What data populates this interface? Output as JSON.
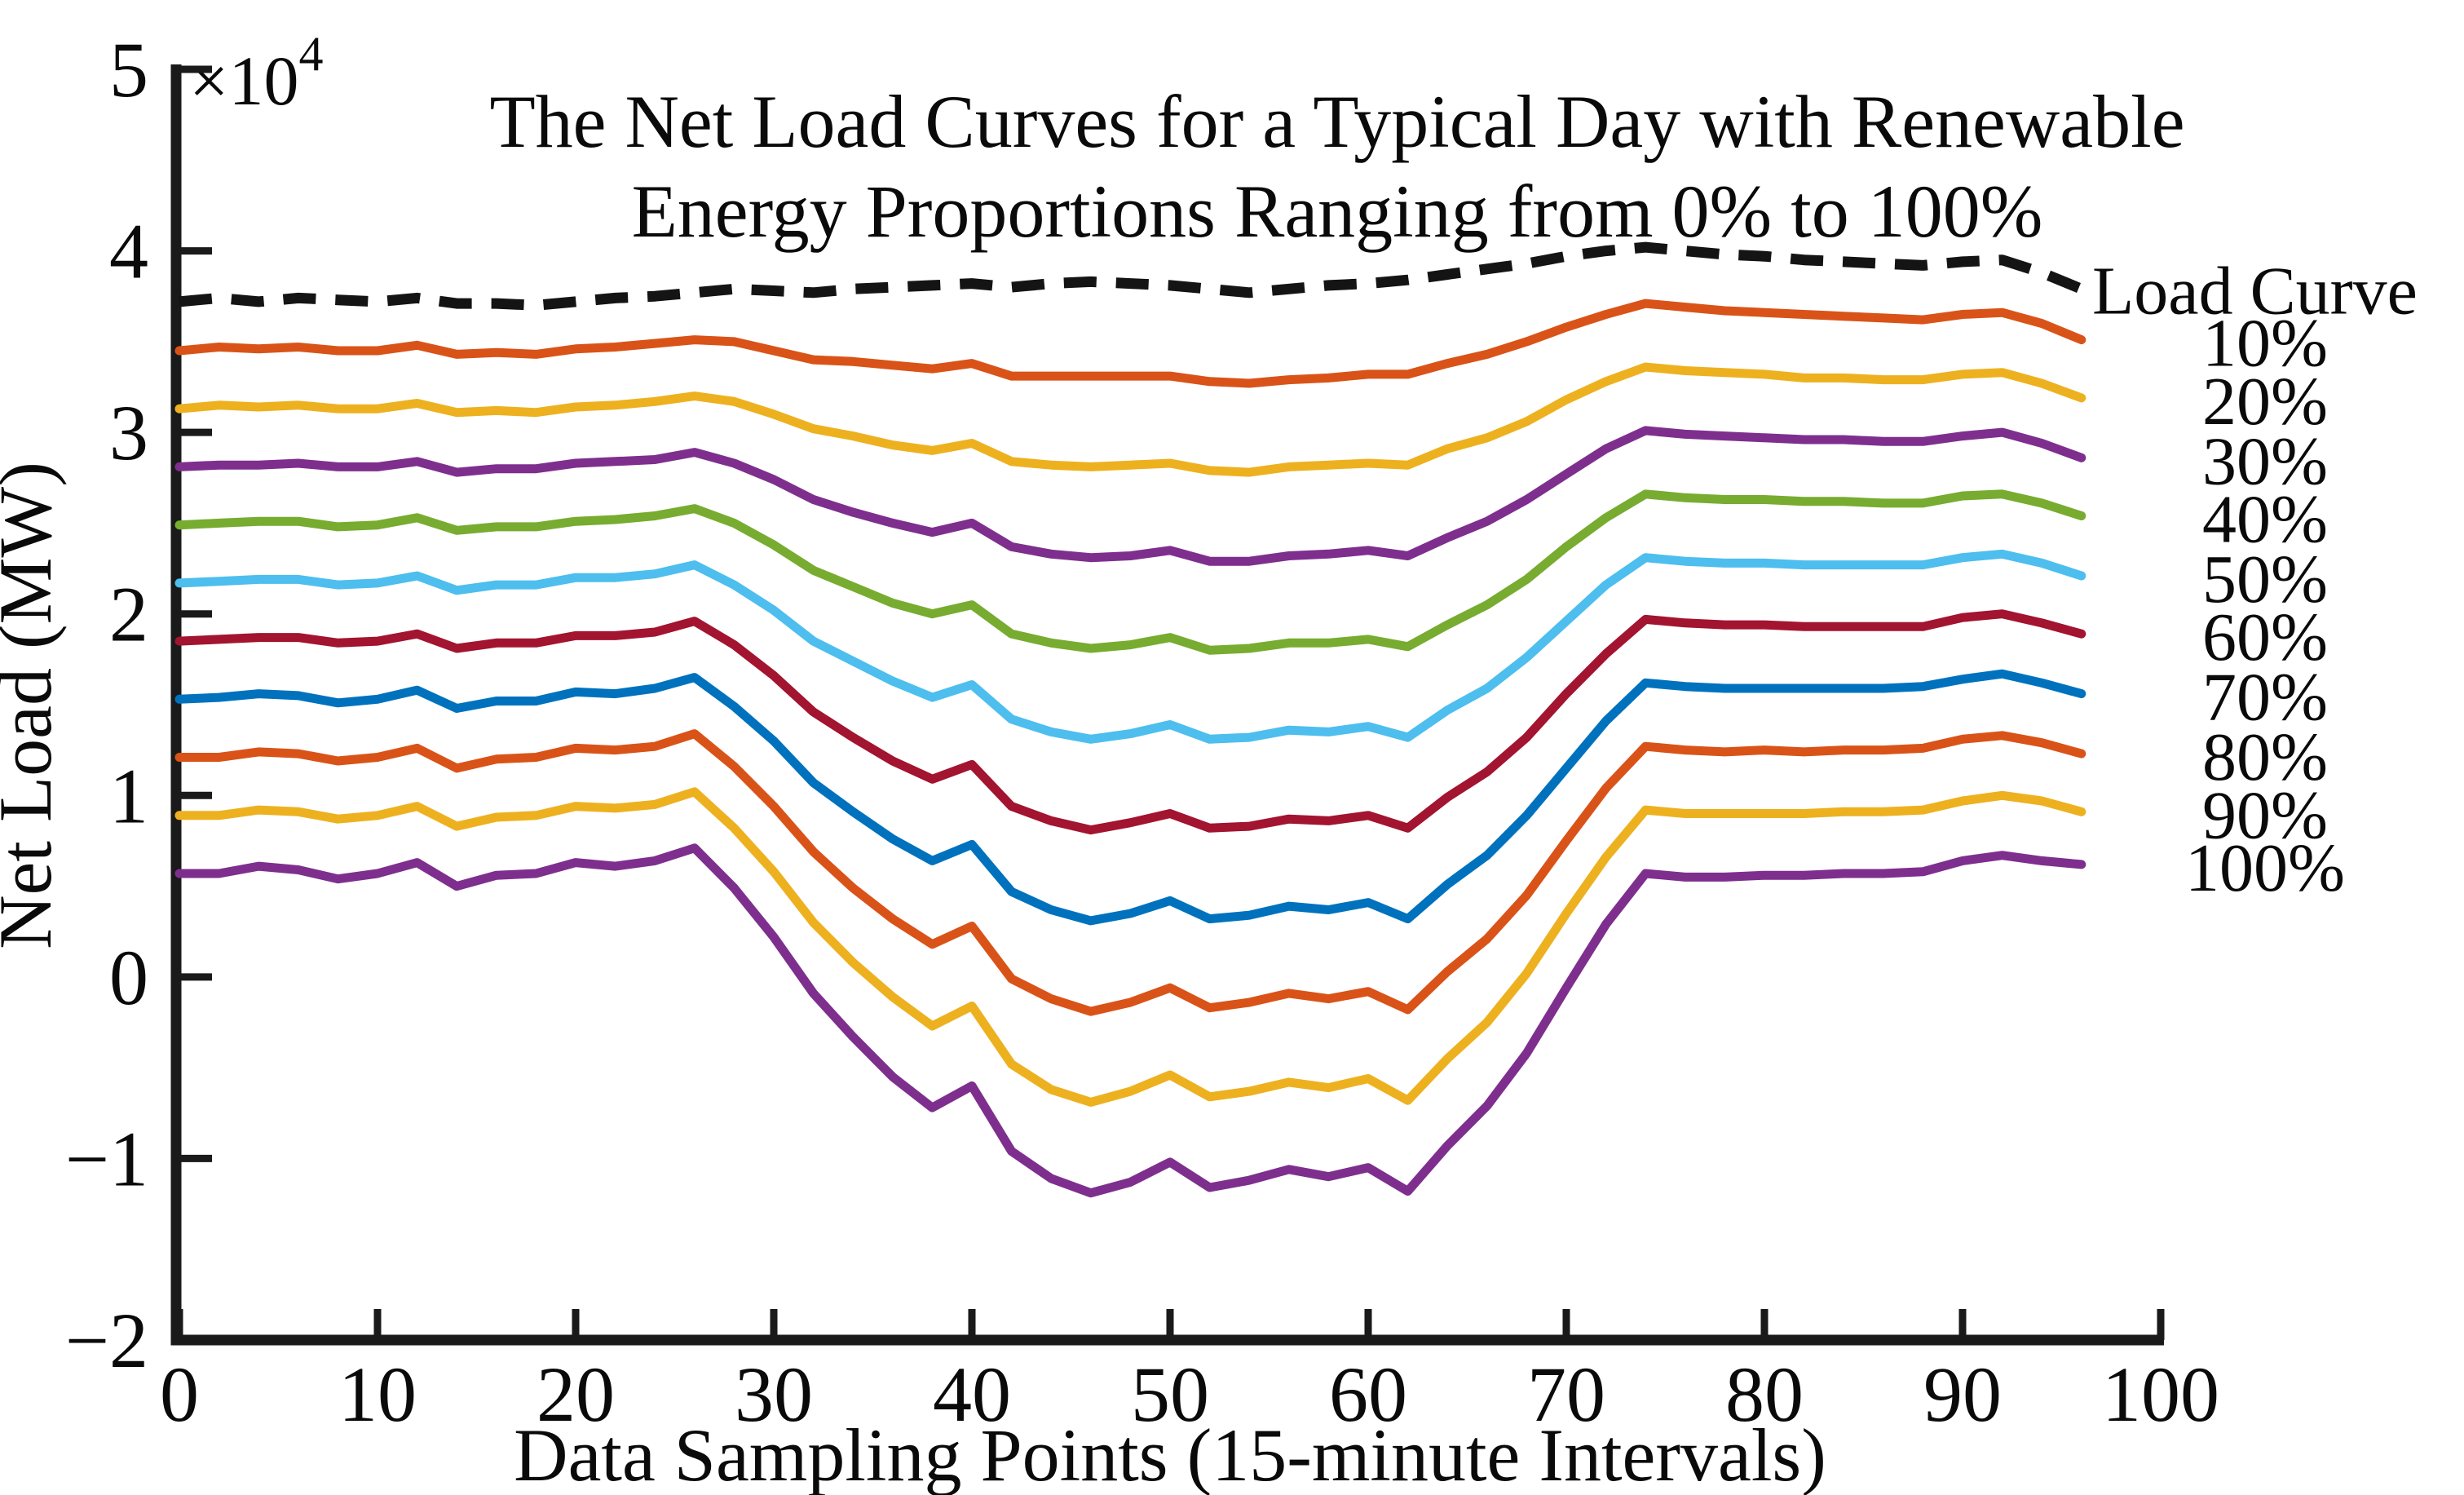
{
  "page": {
    "background_color": "#ffffff"
  },
  "chart_data": {
    "type": "line",
    "title_lines": [
      "The Net Load Curves for a Typical Day with Renewable",
      "Energy Proportions Ranging from 0% to 100%"
    ],
    "xlabel": "Data Sampling Points (15-minute Intervals)",
    "ylabel": "Net Load (MW)",
    "y_axis_multiplier_base": "×10",
    "y_axis_multiplier_exponent": "4",
    "y_unit_scale": 10000,
    "xlim": [
      0,
      100
    ],
    "ylim": [
      -2,
      5
    ],
    "x_ticks": [
      0,
      10,
      20,
      30,
      40,
      50,
      60,
      70,
      80,
      90,
      100
    ],
    "y_ticks": [
      -2,
      -1,
      0,
      1,
      2,
      3,
      4,
      5
    ],
    "grid": false,
    "legend_position": "right-of-plot",
    "axis_color": "#1a1a1a",
    "x": [
      0,
      2,
      4,
      6,
      8,
      10,
      12,
      14,
      16,
      18,
      20,
      22,
      24,
      26,
      28,
      30,
      32,
      34,
      36,
      38,
      40,
      42,
      44,
      46,
      48,
      50,
      52,
      54,
      56,
      58,
      60,
      62,
      64,
      66,
      68,
      70,
      72,
      74,
      76,
      78,
      80,
      82,
      84,
      86,
      88,
      90,
      92,
      94,
      96
    ],
    "series": [
      {
        "name": "Load Curve",
        "color": "#141414",
        "dashed": true,
        "line_width": 13,
        "values": [
          3.72,
          3.74,
          3.72,
          3.74,
          3.73,
          3.72,
          3.74,
          3.71,
          3.71,
          3.7,
          3.72,
          3.74,
          3.75,
          3.77,
          3.79,
          3.78,
          3.77,
          3.79,
          3.8,
          3.81,
          3.82,
          3.8,
          3.82,
          3.83,
          3.82,
          3.81,
          3.79,
          3.77,
          3.79,
          3.81,
          3.82,
          3.84,
          3.87,
          3.9,
          3.93,
          3.97,
          4.0,
          4.02,
          4.0,
          3.98,
          3.97,
          3.95,
          3.94,
          3.93,
          3.92,
          3.94,
          3.95,
          3.88,
          3.79
        ]
      },
      {
        "name": "10%",
        "color": "#D95319",
        "dashed": false,
        "line_width": 11,
        "values": [
          3.45,
          3.47,
          3.46,
          3.47,
          3.45,
          3.45,
          3.48,
          3.43,
          3.44,
          3.43,
          3.46,
          3.47,
          3.49,
          3.51,
          3.5,
          3.45,
          3.4,
          3.39,
          3.37,
          3.35,
          3.38,
          3.31,
          3.31,
          3.31,
          3.31,
          3.31,
          3.28,
          3.27,
          3.29,
          3.3,
          3.32,
          3.32,
          3.38,
          3.43,
          3.5,
          3.58,
          3.65,
          3.71,
          3.69,
          3.67,
          3.66,
          3.65,
          3.64,
          3.63,
          3.62,
          3.65,
          3.66,
          3.6,
          3.51
        ]
      },
      {
        "name": "20%",
        "color": "#EDB120",
        "dashed": false,
        "line_width": 11,
        "values": [
          3.13,
          3.15,
          3.14,
          3.15,
          3.13,
          3.13,
          3.16,
          3.11,
          3.12,
          3.11,
          3.14,
          3.15,
          3.17,
          3.2,
          3.17,
          3.1,
          3.02,
          2.98,
          2.93,
          2.9,
          2.94,
          2.84,
          2.82,
          2.81,
          2.82,
          2.83,
          2.79,
          2.78,
          2.81,
          2.82,
          2.83,
          2.82,
          2.91,
          2.97,
          3.06,
          3.18,
          3.28,
          3.36,
          3.34,
          3.33,
          3.32,
          3.3,
          3.3,
          3.29,
          3.29,
          3.32,
          3.33,
          3.27,
          3.19
        ]
      },
      {
        "name": "30%",
        "color": "#7E2F8E",
        "dashed": false,
        "line_width": 11,
        "values": [
          2.81,
          2.82,
          2.82,
          2.83,
          2.81,
          2.81,
          2.84,
          2.78,
          2.8,
          2.8,
          2.83,
          2.84,
          2.85,
          2.89,
          2.83,
          2.74,
          2.63,
          2.56,
          2.5,
          2.45,
          2.5,
          2.37,
          2.33,
          2.31,
          2.32,
          2.35,
          2.29,
          2.29,
          2.32,
          2.33,
          2.35,
          2.32,
          2.42,
          2.51,
          2.63,
          2.77,
          2.91,
          3.01,
          2.99,
          2.98,
          2.97,
          2.96,
          2.96,
          2.95,
          2.95,
          2.98,
          3.0,
          2.94,
          2.86
        ]
      },
      {
        "name": "40%",
        "color": "#77AC30",
        "dashed": false,
        "line_width": 11,
        "values": [
          2.49,
          2.5,
          2.51,
          2.51,
          2.48,
          2.49,
          2.53,
          2.46,
          2.48,
          2.48,
          2.51,
          2.52,
          2.54,
          2.58,
          2.5,
          2.38,
          2.24,
          2.15,
          2.06,
          2.0,
          2.05,
          1.89,
          1.84,
          1.81,
          1.83,
          1.87,
          1.8,
          1.81,
          1.84,
          1.84,
          1.86,
          1.82,
          1.94,
          2.05,
          2.19,
          2.37,
          2.53,
          2.66,
          2.64,
          2.63,
          2.63,
          2.62,
          2.62,
          2.61,
          2.61,
          2.65,
          2.66,
          2.61,
          2.54
        ]
      },
      {
        "name": "50%",
        "color": "#4DBEEE",
        "dashed": false,
        "line_width": 11,
        "values": [
          2.17,
          2.18,
          2.19,
          2.19,
          2.16,
          2.17,
          2.21,
          2.13,
          2.16,
          2.16,
          2.2,
          2.2,
          2.22,
          2.27,
          2.16,
          2.02,
          1.85,
          1.74,
          1.63,
          1.54,
          1.61,
          1.42,
          1.35,
          1.31,
          1.34,
          1.39,
          1.31,
          1.32,
          1.36,
          1.35,
          1.38,
          1.32,
          1.47,
          1.59,
          1.76,
          1.96,
          2.16,
          2.31,
          2.29,
          2.28,
          2.28,
          2.27,
          2.27,
          2.27,
          2.27,
          2.31,
          2.33,
          2.28,
          2.21
        ]
      },
      {
        "name": "60%",
        "color": "#A2142F",
        "dashed": false,
        "line_width": 11,
        "values": [
          1.85,
          1.86,
          1.87,
          1.87,
          1.84,
          1.85,
          1.89,
          1.81,
          1.84,
          1.84,
          1.88,
          1.88,
          1.9,
          1.96,
          1.83,
          1.66,
          1.46,
          1.32,
          1.19,
          1.09,
          1.17,
          0.94,
          0.86,
          0.81,
          0.85,
          0.9,
          0.82,
          0.83,
          0.87,
          0.86,
          0.89,
          0.82,
          0.99,
          1.13,
          1.32,
          1.56,
          1.78,
          1.97,
          1.95,
          1.94,
          1.94,
          1.93,
          1.93,
          1.93,
          1.93,
          1.98,
          2.0,
          1.95,
          1.89
        ]
      },
      {
        "name": "70%",
        "color": "#0072BD",
        "dashed": false,
        "line_width": 11,
        "values": [
          1.53,
          1.54,
          1.56,
          1.55,
          1.51,
          1.53,
          1.58,
          1.48,
          1.52,
          1.52,
          1.57,
          1.56,
          1.59,
          1.65,
          1.49,
          1.3,
          1.07,
          0.91,
          0.76,
          0.64,
          0.73,
          0.47,
          0.37,
          0.31,
          0.35,
          0.42,
          0.32,
          0.34,
          0.39,
          0.37,
          0.41,
          0.32,
          0.51,
          0.67,
          0.89,
          1.15,
          1.41,
          1.62,
          1.6,
          1.59,
          1.59,
          1.59,
          1.59,
          1.59,
          1.6,
          1.64,
          1.67,
          1.62,
          1.56
        ]
      },
      {
        "name": "80%",
        "color": "#D95319",
        "dashed": false,
        "line_width": 11,
        "values": [
          1.21,
          1.21,
          1.24,
          1.23,
          1.19,
          1.21,
          1.26,
          1.15,
          1.2,
          1.21,
          1.26,
          1.25,
          1.27,
          1.34,
          1.16,
          0.94,
          0.69,
          0.49,
          0.32,
          0.18,
          0.28,
          -0.01,
          -0.12,
          -0.19,
          -0.14,
          -0.06,
          -0.17,
          -0.14,
          -0.09,
          -0.12,
          -0.08,
          -0.18,
          0.03,
          0.21,
          0.45,
          0.75,
          1.04,
          1.27,
          1.25,
          1.24,
          1.25,
          1.24,
          1.25,
          1.25,
          1.26,
          1.31,
          1.33,
          1.29,
          1.23
        ]
      },
      {
        "name": "90%",
        "color": "#EDB120",
        "dashed": false,
        "line_width": 11,
        "values": [
          0.89,
          0.89,
          0.92,
          0.91,
          0.87,
          0.89,
          0.94,
          0.83,
          0.88,
          0.89,
          0.94,
          0.93,
          0.95,
          1.02,
          0.82,
          0.58,
          0.3,
          0.08,
          -0.11,
          -0.27,
          -0.16,
          -0.48,
          -0.62,
          -0.69,
          -0.63,
          -0.54,
          -0.66,
          -0.63,
          -0.58,
          -0.61,
          -0.56,
          -0.68,
          -0.45,
          -0.25,
          0.02,
          0.35,
          0.66,
          0.92,
          0.9,
          0.9,
          0.9,
          0.9,
          0.91,
          0.91,
          0.92,
          0.97,
          1.0,
          0.97,
          0.91
        ]
      },
      {
        "name": "100%",
        "color": "#7E2F8E",
        "dashed": false,
        "line_width": 11,
        "values": [
          0.57,
          0.57,
          0.61,
          0.59,
          0.54,
          0.57,
          0.63,
          0.5,
          0.56,
          0.57,
          0.63,
          0.61,
          0.64,
          0.71,
          0.49,
          0.22,
          -0.09,
          -0.33,
          -0.55,
          -0.72,
          -0.6,
          -0.96,
          -1.11,
          -1.19,
          -1.13,
          -1.02,
          -1.16,
          -1.12,
          -1.06,
          -1.1,
          -1.05,
          -1.18,
          -0.93,
          -0.71,
          -0.42,
          -0.06,
          0.29,
          0.57,
          0.55,
          0.55,
          0.56,
          0.56,
          0.57,
          0.57,
          0.58,
          0.64,
          0.67,
          0.64,
          0.62
        ]
      }
    ]
  }
}
